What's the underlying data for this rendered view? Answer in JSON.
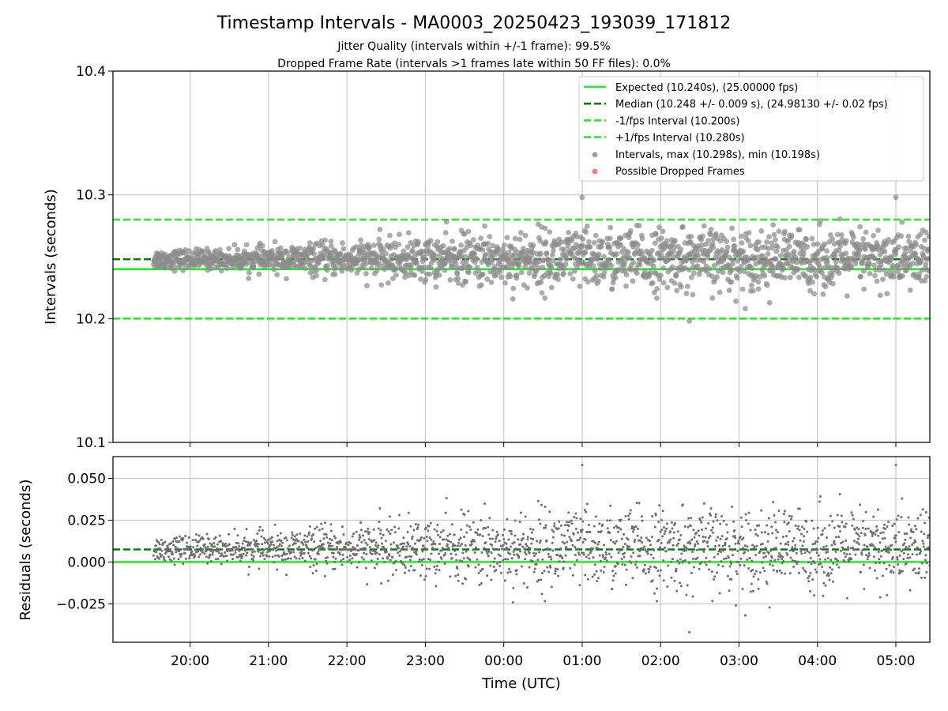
{
  "figure": {
    "title": "Timestamp Intervals - MA0003_20250423_193039_171812",
    "subtitle_1": "Jitter Quality (intervals within +/-1 frame): 99.5%",
    "subtitle_2": "Dropped Frame Rate (intervals >1 frames late within 50 FF files): 0.0%"
  },
  "colors": {
    "expected": "#22ee22",
    "median": "#0b7a0b",
    "interval_band": "#22ee22",
    "points": "#8c8c8c",
    "residual_points": "#6e6e6e",
    "dropped": "#f06060",
    "grid": "#c8c8c8"
  },
  "chart_data": [
    {
      "type": "scatter",
      "panel": "intervals",
      "ylabel": "Intervals (seconds)",
      "xlabel": "",
      "x_ticks": [
        "20:00",
        "21:00",
        "22:00",
        "23:00",
        "00:00",
        "01:00",
        "02:00",
        "03:00",
        "04:00",
        "05:00"
      ],
      "x_range": [
        "19:01",
        "05:26"
      ],
      "ylim": [
        10.1,
        10.4
      ],
      "y_ticks": [
        10.1,
        10.2,
        10.3,
        10.4
      ],
      "y_tick_labels": [
        "10.1",
        "10.2",
        "10.3",
        "10.4"
      ],
      "grid": true,
      "legend_position": "top-right",
      "reference_lines": [
        {
          "name": "Expected (10.240s), (25.00000 fps)",
          "y": 10.24,
          "style": "solid",
          "color_key": "expected"
        },
        {
          "name": "Median (10.248 +/- 0.009 s), (24.98130 +/- 0.02 fps)",
          "y": 10.248,
          "style": "dashed",
          "color_key": "median"
        },
        {
          "name": "-1/fps Interval (10.200s)",
          "y": 10.2,
          "style": "dashed",
          "color_key": "interval_band"
        },
        {
          "name": "+1/fps Interval (10.280s)",
          "y": 10.28,
          "style": "dashed",
          "color_key": "interval_band"
        }
      ],
      "series": [
        {
          "name": "Intervals, max (10.298s), min (10.198s)",
          "marker": "circle",
          "color_key": "points",
          "x_start": "19:32",
          "x_end": "05:26",
          "center": 10.248,
          "max": 10.298,
          "min": 10.198,
          "spread_start": 0.004,
          "spread_end": 0.012
        },
        {
          "name": "Possible Dropped Frames",
          "marker": "circle",
          "color_key": "dropped",
          "values": []
        }
      ]
    },
    {
      "type": "scatter",
      "panel": "residuals",
      "ylabel": "Residuals (seconds)",
      "xlabel": "Time (UTC)",
      "x_ticks": [
        "20:00",
        "21:00",
        "22:00",
        "23:00",
        "00:00",
        "01:00",
        "02:00",
        "03:00",
        "04:00",
        "05:00"
      ],
      "x_range": [
        "19:01",
        "05:26"
      ],
      "ylim": [
        -0.048,
        0.063
      ],
      "y_ticks": [
        -0.025,
        0.0,
        0.025,
        0.05
      ],
      "y_tick_labels": [
        "−0.025",
        "0.000",
        "0.025",
        "0.050"
      ],
      "grid": true,
      "reference_lines": [
        {
          "y": 0.0,
          "style": "solid",
          "color_key": "expected"
        },
        {
          "y": 0.0075,
          "style": "dashed",
          "color_key": "median"
        }
      ],
      "series": [
        {
          "marker": "dot",
          "color_key": "residual_points",
          "x_start": "19:32",
          "x_end": "05:26",
          "center": 0.008,
          "max": 0.059,
          "min": -0.042,
          "spread_start": 0.004,
          "spread_end": 0.012
        }
      ]
    }
  ]
}
